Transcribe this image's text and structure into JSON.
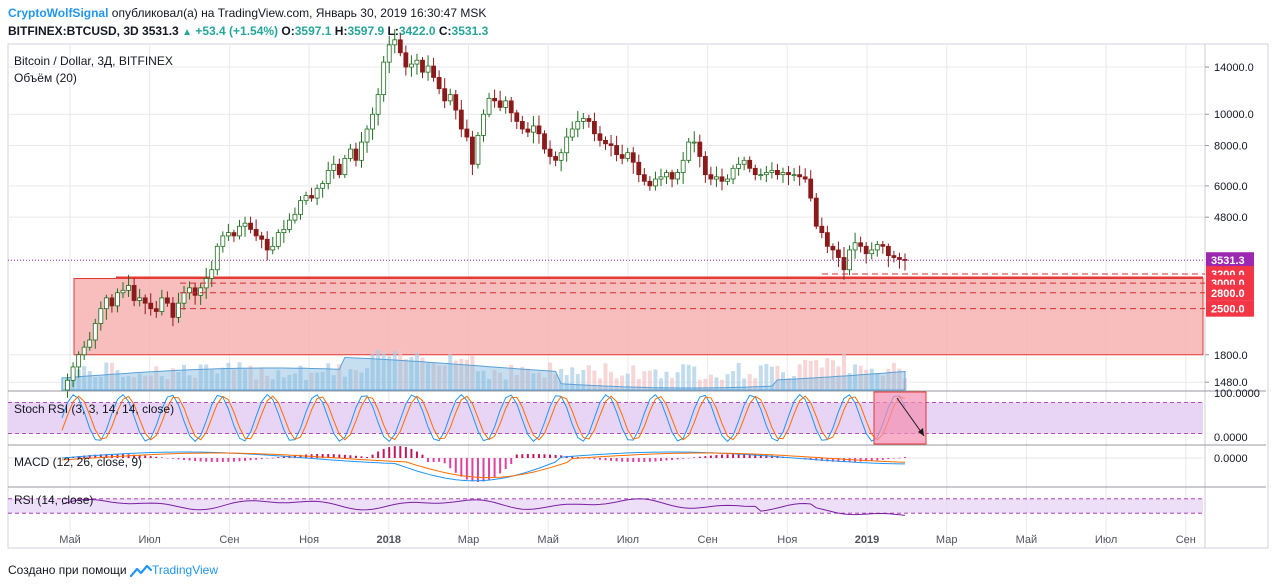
{
  "header": {
    "author": "CryptoWolfSignal",
    "published_text": "опубликовал(а) на TradingView.com, Январь 30, 2019 16:30:47 MSK",
    "symbol": "BITFINEX:BTCUSD, 3D",
    "last": "3531.3",
    "change": "+53.4 (+1.54%)",
    "o_label": "O:",
    "o": "3597.1",
    "h_label": "H:",
    "h": "3597.9",
    "l_label": "L:",
    "l": "3422.0",
    "c_label": "C:",
    "c": "3531.3"
  },
  "footer": {
    "made_with": "Создано при помощи",
    "brand": "TradingView"
  },
  "colors": {
    "up": "#26a69a",
    "down": "#ef5350",
    "candle_up": "#1f6e1f",
    "candle_down": "#8b1a1a",
    "zone_fill": "#f7b2b2",
    "zone_stroke": "#e53935",
    "stoch_fill": "#e8d4f5",
    "grid": "#e9e9ee",
    "price_label": "#9c27b0",
    "accent": "#2196f3",
    "volume": "#aacde6",
    "volume_down": "#f2c5c5"
  },
  "chart_data": [
    {
      "type": "candlestick",
      "title": "Bitcoin / Dollar, 3Д, BITFINEX",
      "subtitle": "Объём (20)",
      "y_scale": "log",
      "ylim": [
        1400,
        16500
      ],
      "y_ticks": [
        "14000.0",
        "10000.0",
        "8000.0",
        "6000.0",
        "4800.0",
        "1800.0",
        "1480.0"
      ],
      "y_tick_values": [
        14000,
        10000,
        8000,
        6000,
        4800,
        1800,
        1480
      ],
      "x_labels": [
        "Май",
        "Июл",
        "Сен",
        "Ноя",
        "2018",
        "Мар",
        "Май",
        "Июл",
        "Сен",
        "Ноя",
        "2019",
        "Мар",
        "Май",
        "Июл",
        "Сен"
      ],
      "x_label_bold": [
        "2018",
        "2019"
      ],
      "last_price": 3531.3,
      "last_price_label": "3531.3",
      "support_levels": [
        {
          "value": 3200,
          "label": "3200.0"
        },
        {
          "value": 3000,
          "label": "3000.0"
        },
        {
          "value": 2800,
          "label": "2800.0"
        },
        {
          "value": 2500,
          "label": "2500.0"
        }
      ],
      "zone_range": [
        1800,
        3100
      ],
      "closes": [
        1400,
        1500,
        1650,
        1800,
        1900,
        2000,
        2250,
        2500,
        2700,
        2550,
        2800,
        2850,
        2950,
        2650,
        2700,
        2600,
        2500,
        2450,
        2700,
        2600,
        2350,
        2600,
        2800,
        2900,
        2750,
        2900,
        3100,
        3300,
        3900,
        4200,
        4300,
        4200,
        4500,
        4600,
        4400,
        4200,
        4100,
        3800,
        3900,
        4300,
        4400,
        4700,
        4900,
        5400,
        5600,
        5500,
        5900,
        6100,
        6700,
        7000,
        6500,
        7300,
        7800,
        7200,
        8200,
        9000,
        10000,
        11500,
        14500,
        16400,
        17000,
        15500,
        14000,
        14300,
        14700,
        13500,
        14100,
        13000,
        12000,
        11000,
        11500,
        10300,
        9000,
        8500,
        7000,
        8600,
        10000,
        11200,
        11000,
        10500,
        11000,
        10100,
        9500,
        9000,
        8800,
        9200,
        8700,
        7800,
        7400,
        7200,
        7600,
        8500,
        9000,
        9500,
        9700,
        9500,
        8700,
        8300,
        8100,
        8000,
        7500,
        7300,
        7600,
        7100,
        6500,
        6200,
        6000,
        6300,
        6400,
        6600,
        6300,
        6600,
        7200,
        8200,
        8200,
        7400,
        6500,
        6300,
        6400,
        6200,
        6300,
        6800,
        7000,
        7200,
        6800,
        6500,
        6500,
        6600,
        6700,
        6500,
        6600,
        6500,
        6500,
        6400,
        6300,
        5500,
        4500,
        4300,
        3900,
        3800,
        3600,
        3300,
        3800,
        4000,
        3900,
        3700,
        3800,
        3950,
        3900,
        3650,
        3600,
        3550,
        3531
      ]
    },
    {
      "type": "line",
      "title": "Stoch RSI (3, 3, 14, 14, close)",
      "ylim": [
        0,
        100
      ],
      "y_ticks": [
        "100.0000",
        "0.0000"
      ],
      "band": [
        20,
        80
      ],
      "k_phase": 0.72,
      "note": "oscillating %K/%D lines with shaded 20–80 band and downward arrow annotation at latest bars"
    },
    {
      "type": "line",
      "title": "MACD (12, 26, close, 9)",
      "y_ticks": [
        "0.0000"
      ],
      "series": [
        "macd",
        "signal",
        "histogram"
      ]
    },
    {
      "type": "line",
      "title": "RSI (14, close)",
      "ylim": [
        0,
        100
      ],
      "band": [
        30,
        70
      ]
    }
  ]
}
